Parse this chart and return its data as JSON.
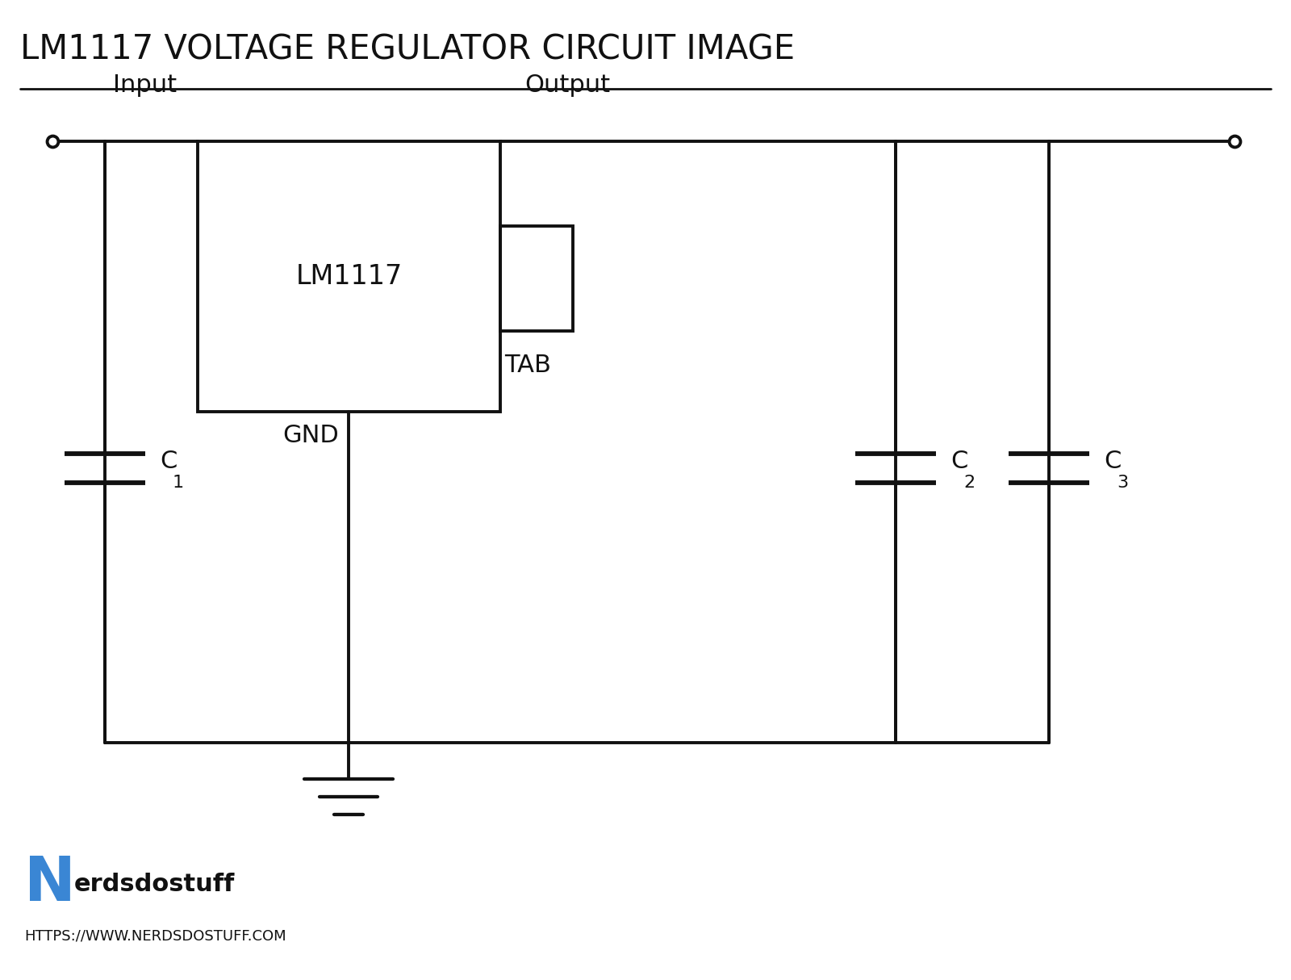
{
  "title": "LM1117 VOLTAGE REGULATOR CIRCUIT IMAGE",
  "title_fontsize": 30,
  "title_color": "#111111",
  "background_color": "#ffffff",
  "line_color": "#111111",
  "line_width": 2.8,
  "ic_label": "LM1117",
  "ic_label_fontsize": 24,
  "input_label": "Input",
  "output_label": "Output",
  "gnd_label": "GND",
  "tab_label": "TAB",
  "c1_label": "C",
  "c2_label": "C",
  "c3_label": "C",
  "sub1": "1",
  "sub2": "2",
  "sub3": "3",
  "label_fontsize": 22,
  "logo_N_color": "#3a86d4",
  "logo_text": "erdsdostuff",
  "logo_url": "HTTPS://WWW.NERDSDOSTUFF.COM",
  "logo_N_fontsize": 55,
  "logo_text_fontsize": 22,
  "logo_url_fontsize": 13
}
